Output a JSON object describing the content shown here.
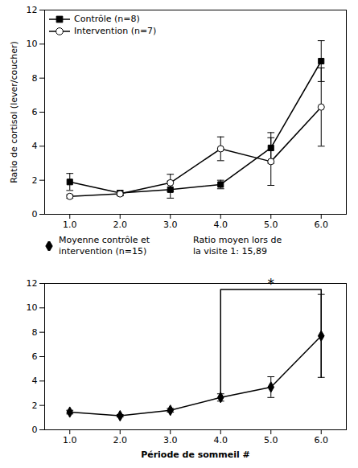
{
  "chart_data": [
    {
      "type": "line",
      "x": [
        1,
        2,
        3,
        4,
        5,
        6
      ],
      "series": [
        {
          "name": "Contrôle (n=8)",
          "color": "black",
          "marker": "square",
          "values": [
            1.9,
            1.25,
            1.45,
            1.75,
            3.9,
            9.0
          ],
          "errors": [
            0.5,
            0.15,
            0.5,
            0.25,
            0.9,
            1.2
          ]
        },
        {
          "name": "Intervention (n=7)",
          "color": "black",
          "marker": "circle",
          "values": [
            1.05,
            1.2,
            1.85,
            3.85,
            3.1,
            6.3
          ],
          "errors": [
            0.1,
            0.1,
            0.5,
            0.7,
            1.4,
            2.3
          ]
        }
      ],
      "ylabel": "Ratio de cortisol (lever/coucher)",
      "xlim": [
        0.5,
        6.5
      ],
      "xticks": [
        1,
        2,
        3,
        4,
        5,
        6
      ],
      "ylim": [
        0,
        12
      ],
      "yticks": [
        0,
        2,
        4,
        6,
        8,
        10,
        12
      ],
      "legend": "upper left",
      "grid": false
    },
    {
      "type": "line",
      "x": [
        1,
        2,
        3,
        4,
        5,
        6
      ],
      "series": [
        {
          "name": "Moyenne contrôle et\nintervention (n=15)",
          "color": "black",
          "marker": "diamond",
          "values": [
            1.45,
            1.15,
            1.6,
            2.65,
            3.5,
            7.7
          ],
          "errors": [
            0.15,
            0.1,
            0.15,
            0.3,
            0.85,
            3.4
          ]
        }
      ],
      "xlabel": "Période de sommeil #",
      "xlim": [
        0.5,
        6.5
      ],
      "xticks": [
        1,
        2,
        3,
        4,
        5,
        6
      ],
      "ylim": [
        0,
        12
      ],
      "yticks": [
        0,
        2,
        4,
        6,
        8,
        10,
        12
      ],
      "legend": "top",
      "grid": false,
      "annotations": [
        {
          "text": "Ratio moyen lors de\nla visite 1: 15,89"
        },
        {
          "text": "*",
          "x1": 4,
          "x2": 6,
          "y": 11.5,
          "y1": 2.7,
          "y2": 4.3
        }
      ]
    }
  ]
}
